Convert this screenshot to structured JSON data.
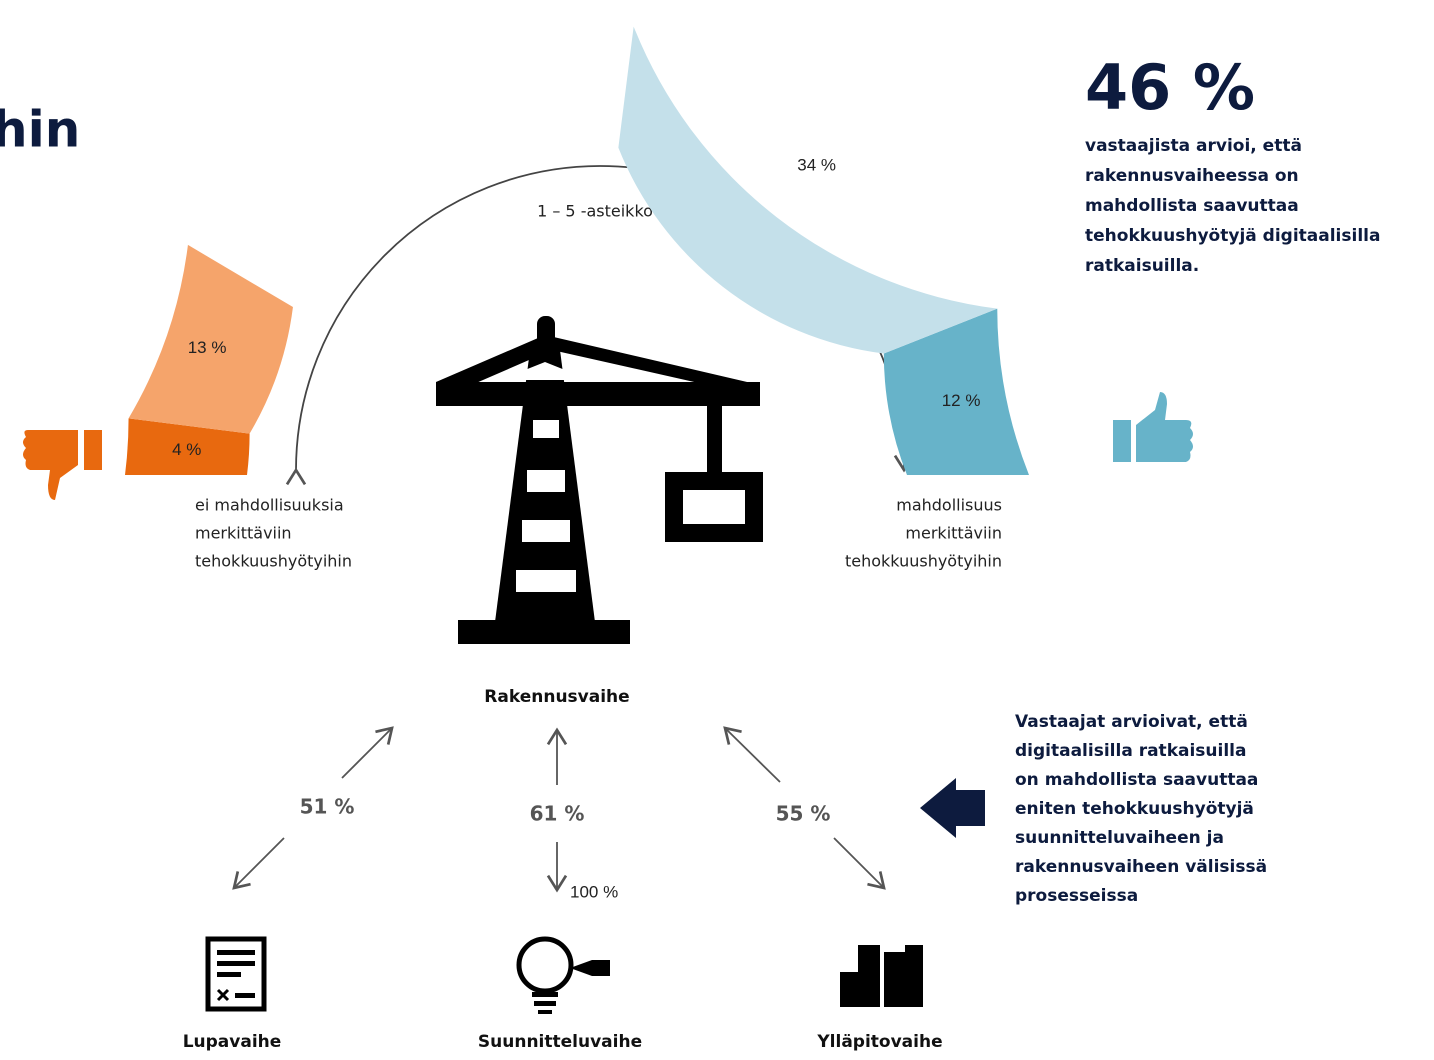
{
  "title_fragment": "hin",
  "gauge": {
    "scale_label": "1 – 5 -asteikko",
    "max": {
      "value": 100,
      "label": "100 %"
    },
    "segments": [
      {
        "side": "left",
        "value": 4,
        "label": "4 %",
        "color": "#e8690f"
      },
      {
        "side": "left",
        "value": 13,
        "label": "13 %",
        "color": "#f5a46b"
      },
      {
        "side": "right",
        "value": 12,
        "label": "12 %",
        "color": "#67b3c9"
      },
      {
        "side": "right",
        "value": 34,
        "label": "34 %",
        "color": "#c4e0ea"
      }
    ],
    "left_label": [
      "ei mahdollisuuksia",
      "merkittäviin",
      "tehokkuushyötyihin"
    ],
    "right_label": [
      "mahdollisuus",
      "merkittäviin",
      "tehokkuushyötyihin"
    ]
  },
  "highlight": {
    "value": "46 %",
    "text": [
      "vastaajista arvioi, että",
      "rakennusvaiheessa on",
      "mahdollista saavuttaa",
      "tehokkuushyötyjä digitaalisilla",
      "ratkaisuilla."
    ]
  },
  "phases": {
    "center": "Rakennusvaihe",
    "links": [
      {
        "phase": "Lupavaihe",
        "label": "51 %"
      },
      {
        "phase": "Suunnitteluvaihe",
        "label": "61 %"
      },
      {
        "phase": "Ylläpitovaihe",
        "label": "55 %"
      }
    ]
  },
  "note": [
    "Vastaajat arvioivat, että",
    "digitaalisilla ratkaisuilla",
    "on mahdollista saavuttaa",
    "eniten tehokkuushyötyjä",
    "suunnitteluvaiheen ja",
    "rakennusvaiheen välisissä",
    "prosesseissa"
  ]
}
